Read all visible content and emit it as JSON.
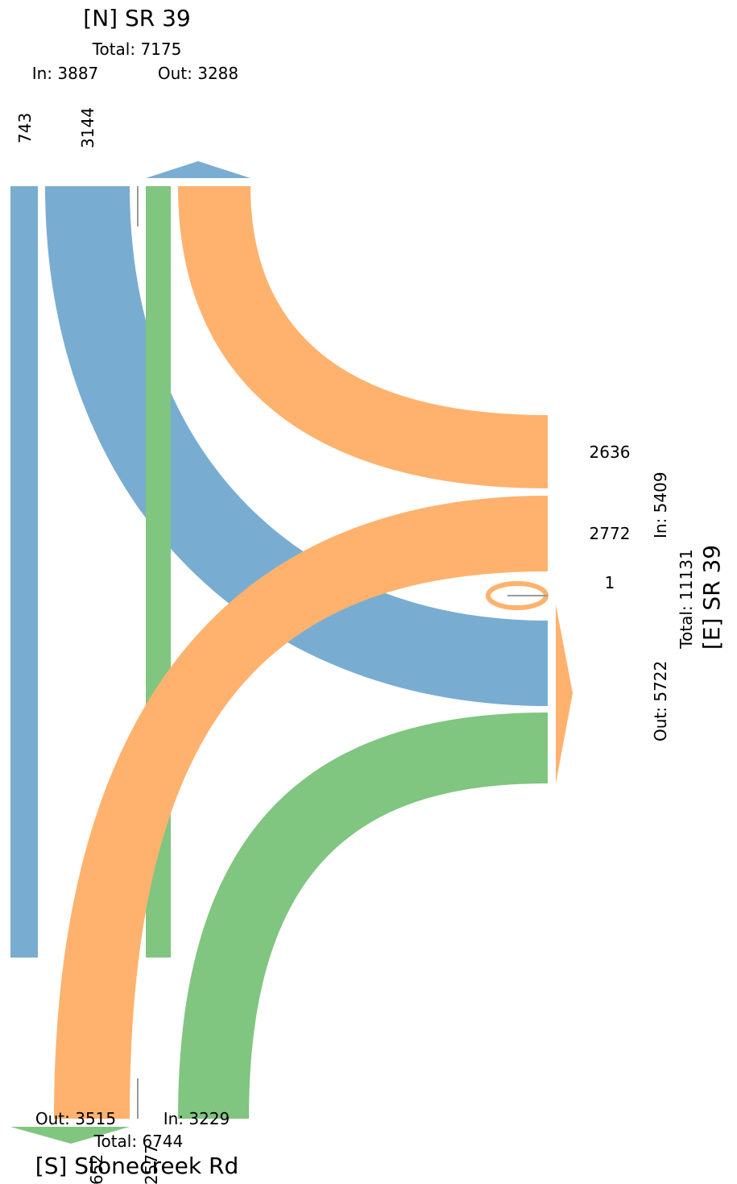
{
  "colors": {
    "north": "#1f77b4",
    "east": "#ff7f0e",
    "south": "#2ca02c",
    "divider": "#999999"
  },
  "north": {
    "title": "[N] SR 39",
    "total": "Total: 7175",
    "in": "In: 3887",
    "out": "Out: 3288",
    "counts": [
      "743",
      "3144"
    ]
  },
  "east": {
    "title": "[E] SR 39",
    "total": "Total: 11131",
    "in": "In: 5409",
    "out": "Out: 5722",
    "counts": [
      "2636",
      "2772",
      "1"
    ]
  },
  "south": {
    "title": "[S] Stonecreek Rd",
    "total": "Total: 6744",
    "in": "In: 3229",
    "out": "Out: 3515",
    "counts": [
      "652",
      "2577"
    ]
  },
  "flows": [
    {
      "from": "north",
      "to": "south",
      "volume": 743
    },
    {
      "from": "north",
      "to": "east",
      "volume": 3144
    },
    {
      "from": "south",
      "to": "north",
      "volume": 652
    },
    {
      "from": "east",
      "to": "north",
      "volume": 2636
    },
    {
      "from": "east",
      "to": "south",
      "volume": 2772
    },
    {
      "from": "east",
      "to": "east",
      "volume": 1
    },
    {
      "from": "south",
      "to": "east",
      "volume": 2577
    }
  ]
}
